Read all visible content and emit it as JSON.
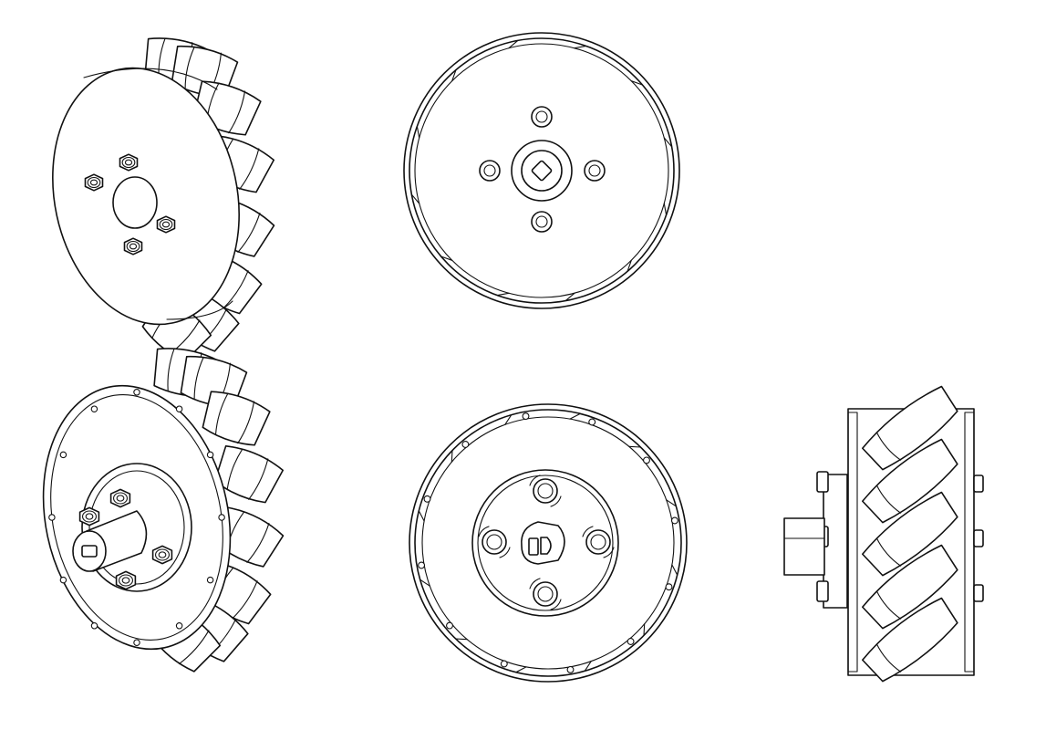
{
  "figure": {
    "background": "#ffffff",
    "line_color": "#111111",
    "views": [
      "mecanum-wheel-iso-outer",
      "mecanum-wheel-front-outer",
      "mecanum-wheel-iso-inner",
      "mecanum-wheel-front-inner",
      "mecanum-wheel-side"
    ]
  }
}
